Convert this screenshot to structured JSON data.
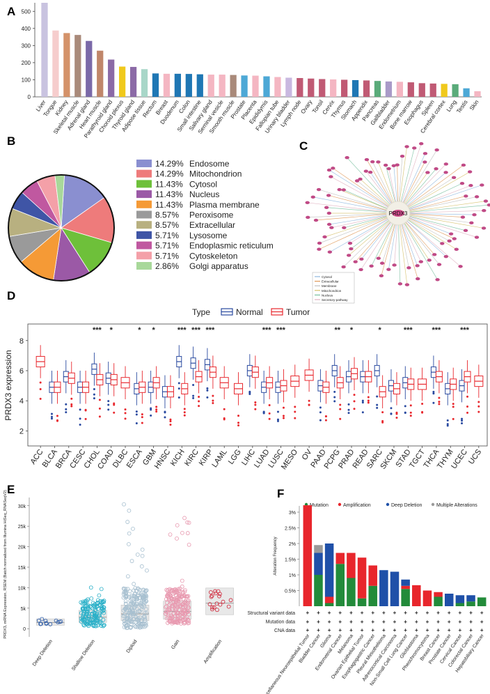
{
  "panel_letters": {
    "a": "A",
    "b": "B",
    "c": "C",
    "d": "D",
    "e": "E",
    "f": "F"
  },
  "chart_data": [
    {
      "id": "A",
      "type": "bar",
      "title": "",
      "xlabel": "",
      "ylabel": "",
      "ylim": [
        0,
        550
      ],
      "yticks": [
        0,
        100,
        200,
        300,
        400,
        500
      ],
      "categories": [
        "Liver",
        "Tongue",
        "Kidney",
        "Skeletal muscle",
        "Adrenal gland",
        "Heart muscle",
        "Parathyroid gland",
        "Choroid plexus",
        "Thyroid gland",
        "Adipose tissue",
        "Rectum",
        "Breast",
        "Duodenum",
        "Colon",
        "Small intestine",
        "Salivary gland",
        "Seminal vesicle",
        "Smooth muscle",
        "Prostate",
        "Placenta",
        "Epididymis",
        "Fallopian tube",
        "Urinary bladder",
        "Lymph node",
        "Ovary",
        "Tonsil",
        "Cervix",
        "Thymus",
        "Stomach",
        "Appendix",
        "Pancreas",
        "Gallbladder",
        "Endometrium",
        "Bone marrow",
        "Esophagus",
        "Spleen",
        "Cerebral cortex",
        "Lung",
        "Testis",
        "Skin"
      ],
      "values": [
        550,
        388,
        373,
        362,
        327,
        270,
        218,
        177,
        175,
        162,
        137,
        135,
        135,
        134,
        132,
        130,
        130,
        128,
        125,
        124,
        120,
        116,
        112,
        110,
        107,
        104,
        102,
        100,
        98,
        96,
        93,
        90,
        88,
        85,
        80,
        78,
        76,
        74,
        50,
        33
      ],
      "colors": [
        "#c9c3e0",
        "#f6cdcd",
        "#d4926a",
        "#a98a7a",
        "#7a69a8",
        "#c0866a",
        "#8b6aa6",
        "#f0c91c",
        "#8b6aa6",
        "#a8d6c8",
        "#1f77b4",
        "#f4b6c2",
        "#1f77b4",
        "#1f77b4",
        "#1f77b4",
        "#f4b6c2",
        "#f4b6c2",
        "#a98a7a",
        "#4da8d6",
        "#f4b6c2",
        "#4da8d6",
        "#f4b6c2",
        "#c9b8e0",
        "#c05a74",
        "#c05a74",
        "#c05a74",
        "#f4b6c2",
        "#c05a74",
        "#1f77b4",
        "#c05a74",
        "#5aab7a",
        "#a99ac8",
        "#f4b6c2",
        "#c05a74",
        "#c05a74",
        "#c05a74",
        "#f0c91c",
        "#5aab7a",
        "#4da8d6",
        "#f4b6c2"
      ]
    },
    {
      "id": "B",
      "type": "pie",
      "title": "",
      "labels": [
        "Endosome",
        "Mitochondrion",
        "Cytosol",
        "Nucleus",
        "Plasma membrane",
        "Peroxisome",
        "Extracellular",
        "Lysosome",
        "Endoplasmic reticulum",
        "Cytoskeleton",
        "Golgi apparatus"
      ],
      "percent_labels": [
        "14.29%",
        "14.29%",
        "11.43%",
        "11.43%",
        "11.43%",
        "8.57%",
        "8.57%",
        "5.71%",
        "5.71%",
        "5.71%",
        "2.86%"
      ],
      "values": [
        14.29,
        14.29,
        11.43,
        11.43,
        11.43,
        8.57,
        8.57,
        5.71,
        5.71,
        5.71,
        2.86
      ],
      "colors": [
        "#8a8fd0",
        "#ee7b7b",
        "#6ec03a",
        "#9b59a6",
        "#f59a36",
        "#9a9a9a",
        "#b8b080",
        "#3f55a6",
        "#c058a0",
        "#f4a0a8",
        "#a8d89a"
      ]
    },
    {
      "id": "C",
      "type": "network",
      "title": "",
      "center_label": "PRDX3",
      "legend": [
        "Cytosol",
        "Extracellular",
        "Membrane",
        "Mitochondrion",
        "Nucleus",
        "Secretory-pathway"
      ],
      "legend_colors": [
        "#8fb8e0",
        "#e09a5a",
        "#c0c0c0",
        "#d6c06a",
        "#7ac0a0",
        "#e0b0c0"
      ]
    },
    {
      "id": "D",
      "type": "box",
      "title": "",
      "xlabel": "",
      "ylabel": "PRDX3 expression",
      "ylim": [
        1,
        9
      ],
      "yticks": [
        2,
        4,
        6,
        8
      ],
      "legend_title": "Type",
      "series": [
        {
          "name": "Normal",
          "color": "#2a4aa0"
        },
        {
          "name": "Tumor",
          "color": "#e8282e"
        }
      ],
      "categories": [
        "ACC",
        "BLCA",
        "BRCA",
        "CESC",
        "CHOL",
        "COAD",
        "DLBC",
        "ESCA",
        "GBM",
        "HNSC",
        "KICH",
        "KIRC",
        "KIRP",
        "LAML",
        "LGG",
        "LIHC",
        "LUAD",
        "LUSC",
        "MESO",
        "OV",
        "PAAD",
        "PCPG",
        "PRAD",
        "READ",
        "SARC",
        "SKCM",
        "STAD",
        "TGCT",
        "THCA",
        "THYM",
        "UCEC",
        "UCS"
      ],
      "significance": [
        "",
        "",
        "",
        "",
        "***",
        "*",
        "",
        "*",
        "*",
        "",
        "***",
        "***",
        "***",
        "",
        "",
        "",
        "***",
        "***",
        "",
        "",
        "",
        "**",
        "*",
        "",
        "*",
        "",
        "***",
        "",
        "***",
        "",
        "***",
        ""
      ],
      "normal_medians": [
        null,
        4.9,
        5.6,
        4.9,
        6.1,
        5.5,
        null,
        4.8,
        4.9,
        4.6,
        6.6,
        6.5,
        6.4,
        null,
        null,
        6.0,
        4.9,
        4.9,
        null,
        null,
        5.0,
        6.0,
        5.6,
        5.6,
        6.0,
        5.0,
        5.2,
        null,
        5.9,
        4.8,
        5.0,
        null
      ],
      "tumor_medians": [
        6.6,
        4.9,
        5.5,
        4.9,
        5.4,
        5.4,
        5.2,
        4.9,
        5.2,
        4.6,
        4.8,
        5.6,
        5.9,
        5.2,
        4.8,
        5.9,
        5.2,
        5.0,
        5.3,
        5.7,
        4.9,
        5.2,
        5.8,
        5.6,
        4.6,
        4.8,
        5.1,
        5.1,
        5.6,
        5.1,
        5.6,
        5.3
      ]
    },
    {
      "id": "E",
      "type": "scatter",
      "title": "",
      "xlabel": "",
      "ylabel": "PRDX3, mRNA Expression, RSEM (Batch normalized from Illumina HiSeq_RNASeqV2)",
      "ylim": [
        -2000,
        32000
      ],
      "yticks": [
        0,
        5000,
        10000,
        15000,
        20000,
        25000,
        30000
      ],
      "ytick_labels": [
        "0",
        "5k",
        "10k",
        "15k",
        "20k",
        "25k",
        "30k"
      ],
      "categories": [
        "Deep Deletion",
        "Shallow Deletion",
        "Diploid",
        "Gain",
        "Amplification"
      ],
      "medians": [
        1500,
        2800,
        3600,
        4200,
        6200
      ],
      "colors": [
        "#2a5aa8",
        "#2ab0c8",
        "#a8c0d0",
        "#e89ab0",
        "#d0263a"
      ]
    },
    {
      "id": "F",
      "type": "bar",
      "stacked": true,
      "title": "",
      "xlabel": "",
      "ylabel": "Alteration Frequency",
      "ylim": [
        0,
        3.2
      ],
      "yticks": [
        0.5,
        1,
        1.5,
        2,
        2.5,
        3
      ],
      "ytick_labels": [
        "0.5%",
        "1%",
        "1.5%",
        "2%",
        "2.5%",
        "3%"
      ],
      "legend": [
        "Mutation",
        "Amplification",
        "Deep Deletion",
        "Multiple Alterations"
      ],
      "legend_colors": [
        "#228b3a",
        "#e8262c",
        "#1f50a8",
        "#9a9a9a"
      ],
      "categories": [
        "Miscellaneous Neuroepithelial Tumor",
        "Bladder Cancer",
        "Glioma",
        "Endometrial Cancer",
        "Melanoma",
        "Ovarian Epithelial Tumor",
        "Esophagogastric Cancer",
        "Pleural Mesothelioma",
        "Adrenocortical Carcinoma",
        "Non-Small Cell Lung Cancer",
        "Glioblastoma",
        "Pheochromocytoma",
        "Breast Cancer",
        "Prostate Cancer",
        "Cervical Cancer",
        "Colorectal Cancer",
        "Hepatobiliary Cancer"
      ],
      "series": [
        {
          "name": "Mutation",
          "values": [
            0,
            1.0,
            0.1,
            1.35,
            0.9,
            0.25,
            0.65,
            0,
            0,
            0.55,
            0,
            0,
            0.3,
            0,
            0.1,
            0.15,
            0.28
          ]
        },
        {
          "name": "Amplification",
          "values": [
            3.22,
            0,
            0.2,
            0.35,
            0.8,
            1.3,
            0.65,
            0,
            0,
            0.1,
            0.67,
            0.5,
            0.15,
            0,
            0,
            0,
            0
          ]
        },
        {
          "name": "Deep Deletion",
          "values": [
            0,
            0.7,
            1.7,
            0,
            0,
            0,
            0,
            1.15,
            1.1,
            0.2,
            0,
            0,
            0,
            0.4,
            0.25,
            0.2,
            0
          ]
        },
        {
          "name": "Multiple Alterations",
          "values": [
            0,
            0.25,
            0,
            0,
            0,
            0,
            0,
            0,
            0,
            0,
            0,
            0,
            0,
            0,
            0,
            0,
            0
          ]
        }
      ],
      "row_labels": [
        "Structural variant data",
        "Mutation data",
        "CNA data"
      ],
      "row_marker": "+"
    }
  ]
}
